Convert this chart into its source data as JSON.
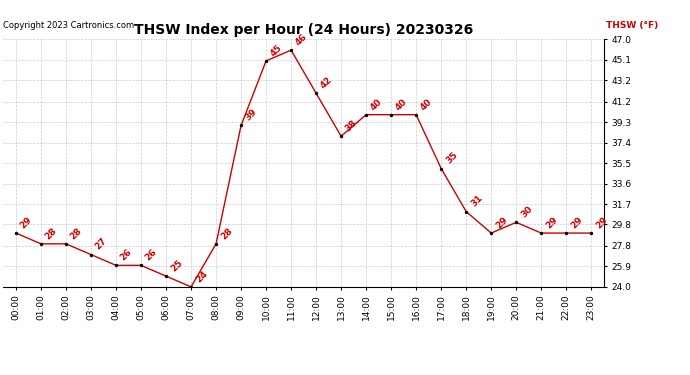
{
  "title": "THSW Index per Hour (24 Hours) 20230326",
  "copyright": "Copyright 2023 Cartronics.com",
  "legend_label": "THSW (°F)",
  "hours": [
    "00:00",
    "01:00",
    "02:00",
    "03:00",
    "04:00",
    "05:00",
    "06:00",
    "07:00",
    "08:00",
    "09:00",
    "10:00",
    "11:00",
    "12:00",
    "13:00",
    "14:00",
    "15:00",
    "16:00",
    "17:00",
    "18:00",
    "19:00",
    "20:00",
    "21:00",
    "22:00",
    "23:00"
  ],
  "values": [
    29,
    28,
    28,
    27,
    26,
    26,
    25,
    24,
    28,
    39,
    45,
    46,
    42,
    38,
    40,
    40,
    40,
    35,
    31,
    29,
    30,
    29,
    29,
    29
  ],
  "ylim_min": 24.0,
  "ylim_max": 47.0,
  "yticks": [
    24.0,
    25.9,
    27.8,
    29.8,
    31.7,
    33.6,
    35.5,
    37.4,
    39.3,
    41.2,
    43.2,
    45.1,
    47.0
  ],
  "line_color": "#cc0000",
  "marker_color": "#000000",
  "label_color": "#cc0000",
  "background_color": "#ffffff",
  "grid_color": "#aaaaaa",
  "title_fontsize": 10,
  "label_fontsize": 6.5,
  "tick_fontsize": 6.5,
  "copyright_fontsize": 6,
  "annotation_fontsize": 6.5
}
